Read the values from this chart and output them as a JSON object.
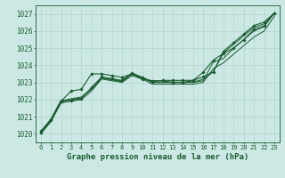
{
  "background_color": "#cce8e4",
  "grid_color": "#b0d4d0",
  "line_color": "#1a5c30",
  "marker_color": "#1a5c30",
  "xlabel": "Graphe pression niveau de la mer (hPa)",
  "xlabel_fontsize": 6.5,
  "xtick_fontsize": 5.0,
  "ytick_fontsize": 5.5,
  "xlim": [
    -0.5,
    23.5
  ],
  "ylim": [
    1019.5,
    1027.5
  ],
  "yticks": [
    1020,
    1021,
    1022,
    1023,
    1024,
    1025,
    1026,
    1027
  ],
  "xticks": [
    0,
    1,
    2,
    3,
    4,
    5,
    6,
    7,
    8,
    9,
    10,
    11,
    12,
    13,
    14,
    15,
    16,
    17,
    18,
    19,
    20,
    21,
    22,
    23
  ],
  "series": [
    {
      "x": [
        0,
        1,
        2,
        3,
        4,
        5,
        6,
        7,
        8,
        9,
        10,
        11,
        12,
        13,
        14,
        15,
        16,
        17,
        18,
        19,
        20,
        21,
        22,
        23
      ],
      "y": [
        1020.05,
        1020.8,
        1021.9,
        1022.5,
        1022.6,
        1023.5,
        1023.5,
        1023.4,
        1023.3,
        1023.5,
        1023.2,
        1023.1,
        1023.1,
        1023.0,
        1023.0,
        1023.1,
        1023.6,
        1024.3,
        1024.7,
        1025.0,
        1025.5,
        1026.1,
        1026.3,
        1027.05
      ],
      "has_markers": true,
      "linewidth": 0.8
    },
    {
      "x": [
        0,
        1,
        2,
        3,
        4,
        5,
        6,
        7,
        8,
        9,
        10,
        11,
        12,
        13,
        14,
        15,
        16,
        17,
        18,
        19,
        20,
        21,
        22,
        23
      ],
      "y": [
        1020.0,
        1020.7,
        1021.8,
        1021.9,
        1022.0,
        1022.5,
        1023.2,
        1023.1,
        1023.0,
        1023.4,
        1023.2,
        1022.9,
        1022.9,
        1022.9,
        1022.9,
        1022.9,
        1023.0,
        1023.8,
        1024.15,
        1024.65,
        1025.15,
        1025.65,
        1026.0,
        1026.85
      ],
      "has_markers": false,
      "linewidth": 0.7
    },
    {
      "x": [
        0,
        1,
        2,
        3,
        4,
        5,
        6,
        7,
        8,
        9,
        10,
        11,
        12,
        13,
        14,
        15,
        16,
        17,
        18,
        19,
        20,
        21,
        22,
        23
      ],
      "y": [
        1020.05,
        1020.75,
        1021.85,
        1022.0,
        1022.1,
        1022.6,
        1023.25,
        1023.15,
        1023.05,
        1023.5,
        1023.25,
        1023.0,
        1023.0,
        1023.0,
        1023.0,
        1023.0,
        1023.1,
        1024.2,
        1024.4,
        1025.0,
        1025.5,
        1026.0,
        1026.25,
        1027.05
      ],
      "has_markers": false,
      "linewidth": 0.7
    },
    {
      "x": [
        0,
        1,
        2,
        3,
        4,
        5,
        6,
        7,
        8,
        9,
        10,
        11,
        12,
        13,
        14,
        15,
        16,
        17,
        18,
        19,
        20,
        21,
        22,
        23
      ],
      "y": [
        1020.1,
        1020.82,
        1021.92,
        1022.05,
        1022.15,
        1022.65,
        1023.28,
        1023.18,
        1023.08,
        1023.52,
        1023.28,
        1023.02,
        1023.02,
        1023.02,
        1023.02,
        1023.02,
        1023.18,
        1023.62,
        1024.72,
        1025.22,
        1025.72,
        1026.22,
        1026.42,
        1027.0
      ],
      "has_markers": false,
      "linewidth": 0.7
    },
    {
      "x": [
        0,
        1,
        2,
        3,
        4,
        5,
        6,
        7,
        8,
        9,
        10,
        11,
        12,
        13,
        14,
        15,
        16,
        17,
        18,
        19,
        20,
        21,
        22,
        23
      ],
      "y": [
        1020.15,
        1020.85,
        1021.95,
        1021.95,
        1022.05,
        1022.7,
        1023.32,
        1023.22,
        1023.12,
        1023.55,
        1023.3,
        1023.05,
        1023.12,
        1023.12,
        1023.12,
        1023.12,
        1023.32,
        1023.62,
        1024.82,
        1025.32,
        1025.82,
        1026.32,
        1026.52,
        1027.05
      ],
      "has_markers": true,
      "linewidth": 0.8
    }
  ]
}
